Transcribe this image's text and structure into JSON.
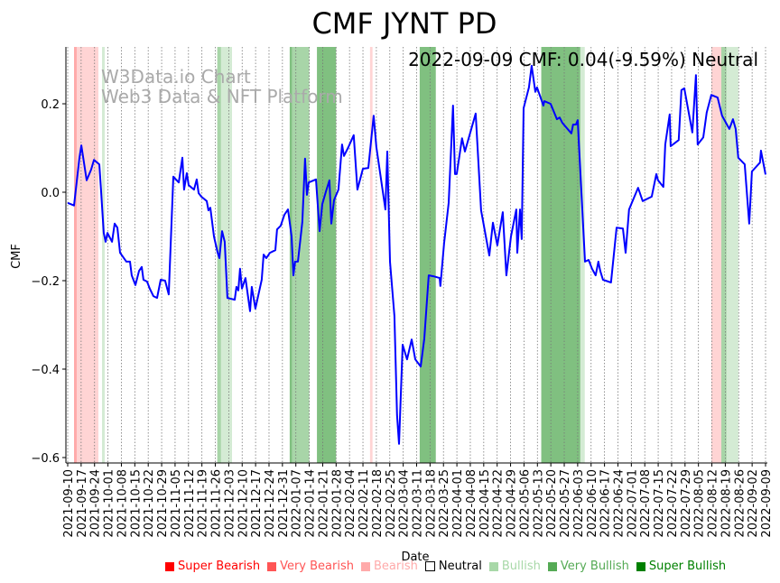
{
  "chart_data": {
    "type": "line",
    "title": "CMF JYNT PD",
    "xlabel": "Date",
    "ylabel": "CMF",
    "watermark": [
      "W3Data.io Chart",
      "Web3 Data & NFT Platform"
    ],
    "info": "2022-09-09 CMF: 0.04(-9.59%) Neutral",
    "start_date": "2021-09-10",
    "xlim_days": [
      0,
      364
    ],
    "ylim": [
      -0.61,
      0.33
    ],
    "yticks": [
      {
        "v": 0.2,
        "label": "0.2"
      },
      {
        "v": 0.0,
        "label": "0.0"
      },
      {
        "v": -0.2,
        "label": "−0.2"
      },
      {
        "v": -0.4,
        "label": "−0.4"
      },
      {
        "v": -0.6,
        "label": "−0.6"
      }
    ],
    "xticks": [
      "2021-09-10",
      "2021-09-17",
      "2021-09-24",
      "2021-10-01",
      "2021-10-08",
      "2021-10-15",
      "2021-10-22",
      "2021-10-29",
      "2021-11-05",
      "2021-11-12",
      "2021-11-19",
      "2021-11-26",
      "2021-12-03",
      "2021-12-10",
      "2021-12-17",
      "2021-12-24",
      "2021-12-31",
      "2022-01-07",
      "2022-01-14",
      "2022-01-21",
      "2022-01-28",
      "2022-02-04",
      "2022-02-11",
      "2022-02-18",
      "2022-02-25",
      "2022-03-04",
      "2022-03-11",
      "2022-03-18",
      "2022-03-25",
      "2022-04-01",
      "2022-04-08",
      "2022-04-15",
      "2022-04-22",
      "2022-04-29",
      "2022-05-06",
      "2022-05-13",
      "2022-05-20",
      "2022-05-27",
      "2022-06-03",
      "2022-06-10",
      "2022-06-17",
      "2022-06-24",
      "2022-07-01",
      "2022-07-08",
      "2022-07-15",
      "2022-07-22",
      "2022-07-29",
      "2022-08-05",
      "2022-08-12",
      "2022-08-19",
      "2022-08-26",
      "2022-09-02",
      "2022-09-09"
    ],
    "grid": "vertical dotted",
    "series": [
      {
        "name": "CMF",
        "color": "#0000ff",
        "points": [
          [
            0,
            -0.024
          ],
          [
            3.3,
            -0.03
          ],
          [
            6.1,
            0.078
          ],
          [
            7.1,
            0.106
          ],
          [
            9.9,
            0.027
          ],
          [
            12.2,
            0.051
          ],
          [
            13.7,
            0.073
          ],
          [
            16.5,
            0.063
          ],
          [
            17.4,
            0.002
          ],
          [
            18.8,
            -0.092
          ],
          [
            19.8,
            -0.112
          ],
          [
            20.7,
            -0.092
          ],
          [
            23.1,
            -0.112
          ],
          [
            24.5,
            -0.071
          ],
          [
            25.9,
            -0.08
          ],
          [
            27.3,
            -0.137
          ],
          [
            30.6,
            -0.157
          ],
          [
            32.5,
            -0.157
          ],
          [
            33.4,
            -0.188
          ],
          [
            35.3,
            -0.21
          ],
          [
            37.2,
            -0.178
          ],
          [
            38.6,
            -0.169
          ],
          [
            39.5,
            -0.198
          ],
          [
            41.4,
            -0.202
          ],
          [
            42.8,
            -0.218
          ],
          [
            44.7,
            -0.235
          ],
          [
            46.6,
            -0.239
          ],
          [
            48.5,
            -0.198
          ],
          [
            50.8,
            -0.2
          ],
          [
            52.7,
            -0.231
          ],
          [
            55.1,
            0.035
          ],
          [
            57.9,
            0.022
          ],
          [
            59.8,
            0.078
          ],
          [
            60.7,
            0.006
          ],
          [
            62.1,
            0.043
          ],
          [
            63.1,
            0.016
          ],
          [
            65.9,
            0.006
          ],
          [
            67.3,
            0.029
          ],
          [
            68.3,
            -0.002
          ],
          [
            69.7,
            -0.01
          ],
          [
            72.5,
            -0.02
          ],
          [
            73.4,
            -0.041
          ],
          [
            74.4,
            -0.035
          ],
          [
            76.3,
            -0.1
          ],
          [
            78.2,
            -0.137
          ],
          [
            79.1,
            -0.149
          ],
          [
            80.5,
            -0.088
          ],
          [
            81.9,
            -0.112
          ],
          [
            83.3,
            -0.239
          ],
          [
            87.1,
            -0.243
          ],
          [
            88,
            -0.214
          ],
          [
            89,
            -0.222
          ],
          [
            89.9,
            -0.173
          ],
          [
            90.9,
            -0.218
          ],
          [
            92.7,
            -0.194
          ],
          [
            95.1,
            -0.269
          ],
          [
            96,
            -0.214
          ],
          [
            97.9,
            -0.263
          ],
          [
            101.2,
            -0.198
          ],
          [
            102.2,
            -0.141
          ],
          [
            103.6,
            -0.149
          ],
          [
            105.5,
            -0.137
          ],
          [
            108.3,
            -0.131
          ],
          [
            109.2,
            -0.084
          ],
          [
            111.1,
            -0.076
          ],
          [
            113,
            -0.051
          ],
          [
            114.9,
            -0.039
          ],
          [
            116.8,
            -0.1
          ],
          [
            117.7,
            -0.188
          ],
          [
            118.6,
            -0.157
          ],
          [
            120.1,
            -0.157
          ],
          [
            122.4,
            -0.067
          ],
          [
            123.8,
            0.076
          ],
          [
            124.8,
            -0.006
          ],
          [
            125.7,
            0.022
          ],
          [
            129.5,
            0.029
          ],
          [
            131.4,
            -0.088
          ],
          [
            132.8,
            -0.027
          ],
          [
            134.7,
            0.002
          ],
          [
            136.5,
            0.027
          ],
          [
            137.5,
            -0.071
          ],
          [
            138.9,
            -0.018
          ],
          [
            141.2,
            0.006
          ],
          [
            143.1,
            0.108
          ],
          [
            144.1,
            0.082
          ],
          [
            146.4,
            0.102
          ],
          [
            149.2,
            0.129
          ],
          [
            151.1,
            0.006
          ],
          [
            154,
            0.053
          ],
          [
            156.8,
            0.055
          ],
          [
            159.6,
            0.173
          ],
          [
            161,
            0.102
          ],
          [
            165.7,
            -0.039
          ],
          [
            166.7,
            0.092
          ],
          [
            168.1,
            -0.157
          ],
          [
            170.4,
            -0.28
          ],
          [
            171.8,
            -0.504
          ],
          [
            172.8,
            -0.569
          ],
          [
            174.7,
            -0.345
          ],
          [
            177,
            -0.378
          ],
          [
            179.4,
            -0.333
          ],
          [
            181.3,
            -0.378
          ],
          [
            184.1,
            -0.394
          ],
          [
            186,
            -0.331
          ],
          [
            188.3,
            -0.188
          ],
          [
            190.7,
            -0.19
          ],
          [
            194,
            -0.194
          ],
          [
            194.4,
            -0.212
          ],
          [
            196.3,
            -0.116
          ],
          [
            198.7,
            -0.024
          ],
          [
            201,
            0.196
          ],
          [
            202,
            0.041
          ],
          [
            202.9,
            0.041
          ],
          [
            205.7,
            0.122
          ],
          [
            207.2,
            0.092
          ],
          [
            212.8,
            0.178
          ],
          [
            215.6,
            -0.041
          ],
          [
            219.9,
            -0.143
          ],
          [
            221.8,
            -0.069
          ],
          [
            224.1,
            -0.12
          ],
          [
            226.9,
            -0.045
          ],
          [
            228.8,
            -0.188
          ],
          [
            231.2,
            -0.1
          ],
          [
            234,
            -0.039
          ],
          [
            234.5,
            -0.137
          ],
          [
            235.9,
            -0.039
          ],
          [
            236.8,
            -0.106
          ],
          [
            237.8,
            0.19
          ],
          [
            240.6,
            0.237
          ],
          [
            242,
            0.286
          ],
          [
            243.9,
            0.227
          ],
          [
            244.8,
            0.237
          ],
          [
            248.1,
            0.196
          ],
          [
            248.6,
            0.206
          ],
          [
            251.9,
            0.2
          ],
          [
            255.2,
            0.165
          ],
          [
            256.6,
            0.169
          ],
          [
            258,
            0.157
          ],
          [
            262.7,
            0.133
          ],
          [
            263.6,
            0.153
          ],
          [
            265.1,
            0.153
          ],
          [
            266,
            0.163
          ],
          [
            269.8,
            -0.157
          ],
          [
            271.7,
            -0.153
          ],
          [
            273.5,
            -0.173
          ],
          [
            275.4,
            -0.188
          ],
          [
            276.8,
            -0.157
          ],
          [
            277.8,
            -0.178
          ],
          [
            279.2,
            -0.198
          ],
          [
            283.4,
            -0.204
          ],
          [
            286.3,
            -0.08
          ],
          [
            289.6,
            -0.082
          ],
          [
            291,
            -0.137
          ],
          [
            292.8,
            -0.039
          ],
          [
            297.5,
            0.01
          ],
          [
            299.9,
            -0.02
          ],
          [
            304.6,
            -0.01
          ],
          [
            307,
            0.041
          ],
          [
            307.9,
            0.027
          ],
          [
            310.7,
            0.012
          ],
          [
            311.7,
            0.108
          ],
          [
            314,
            0.176
          ],
          [
            314.5,
            0.104
          ],
          [
            318.7,
            0.118
          ],
          [
            320.1,
            0.231
          ],
          [
            321.6,
            0.235
          ],
          [
            325.8,
            0.135
          ],
          [
            327.7,
            0.265
          ],
          [
            328.6,
            0.108
          ],
          [
            331.5,
            0.124
          ],
          [
            333.3,
            0.18
          ],
          [
            335.7,
            0.22
          ],
          [
            339,
            0.214
          ],
          [
            341.3,
            0.173
          ],
          [
            345.1,
            0.143
          ],
          [
            347,
            0.165
          ],
          [
            348.4,
            0.143
          ],
          [
            349.8,
            0.078
          ],
          [
            353.1,
            0.063
          ],
          [
            355.5,
            -0.071
          ],
          [
            356.9,
            0.047
          ],
          [
            361.1,
            0.067
          ],
          [
            361.6,
            0.094
          ],
          [
            364,
            0.04
          ]
        ]
      }
    ],
    "bands": [
      {
        "start": 3.3,
        "end": 4.7,
        "level": "very_bearish"
      },
      {
        "start": 4.7,
        "end": 16,
        "level": "bearish"
      },
      {
        "start": 17.9,
        "end": 19.3,
        "level": "bullish"
      },
      {
        "start": 78,
        "end": 80,
        "level": "very_bullish_light"
      },
      {
        "start": 80,
        "end": 85.7,
        "level": "bullish"
      },
      {
        "start": 115.8,
        "end": 117,
        "level": "very_bullish"
      },
      {
        "start": 117,
        "end": 126,
        "level": "very_bullish_light"
      },
      {
        "start": 130,
        "end": 140,
        "level": "very_bullish"
      },
      {
        "start": 157.7,
        "end": 159,
        "level": "bearish"
      },
      {
        "start": 183.6,
        "end": 192,
        "level": "very_bullish"
      },
      {
        "start": 247,
        "end": 267.4,
        "level": "very_bullish"
      },
      {
        "start": 267.4,
        "end": 269.7,
        "level": "bullish"
      },
      {
        "start": 335.7,
        "end": 340.9,
        "level": "bearish"
      },
      {
        "start": 340.9,
        "end": 343.7,
        "level": "very_bullish_light"
      },
      {
        "start": 343.7,
        "end": 349.8,
        "level": "bullish"
      }
    ],
    "band_colors": {
      "very_bearish": "#ffaaaa",
      "bearish": "#ffd4d4",
      "bullish": "#d4ebd4",
      "very_bullish_light": "#a8d5a8",
      "very_bullish": "#80c080"
    },
    "legend": [
      {
        "label": "Super Bearish",
        "color": "#ff0000",
        "text_color": "#ff0000"
      },
      {
        "label": "Very Bearish",
        "color": "#ff5555",
        "text_color": "#ff5555"
      },
      {
        "label": "Bearish",
        "color": "#ffaaaa",
        "text_color": "#ffaaaa"
      },
      {
        "label": "Neutral",
        "color": "none",
        "text_color": "#000000"
      },
      {
        "label": "Bullish",
        "color": "#a8d8a8",
        "text_color": "#a8d8a8"
      },
      {
        "label": "Very Bullish",
        "color": "#55aa55",
        "text_color": "#55aa55"
      },
      {
        "label": "Super Bullish",
        "color": "#008000",
        "text_color": "#008000"
      }
    ],
    "legend_position": "bottom"
  }
}
